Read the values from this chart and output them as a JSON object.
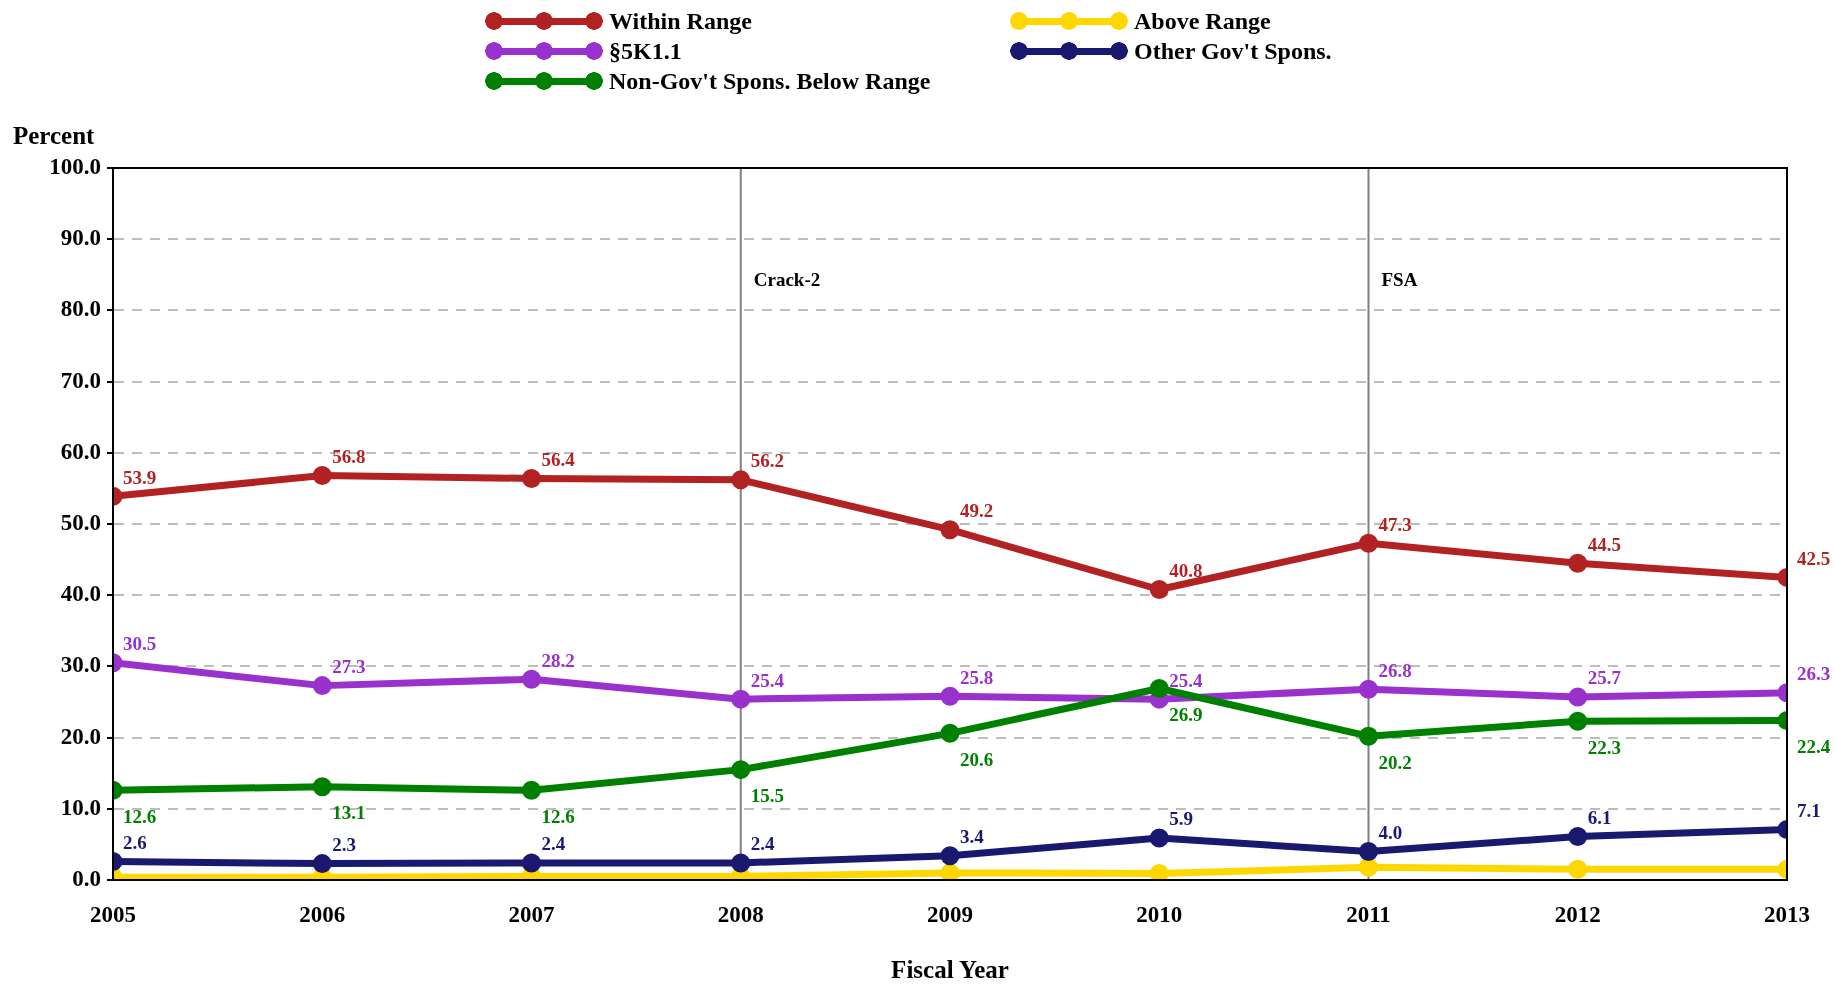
{
  "chart_data": {
    "type": "line",
    "xlabel": "Fiscal Year",
    "ylabel": "Percent",
    "x": [
      2005,
      2006,
      2007,
      2008,
      2009,
      2010,
      2011,
      2012,
      2013
    ],
    "xlim": [
      2005,
      2013
    ],
    "xticks": [
      2005,
      2006,
      2007,
      2008,
      2009,
      2010,
      2011,
      2012,
      2013
    ],
    "ylim": [
      0,
      100
    ],
    "yticks": [
      {
        "value": 0,
        "label": "0.0"
      },
      {
        "value": 10,
        "label": "10.0"
      },
      {
        "value": 20,
        "label": "20.0"
      },
      {
        "value": 30,
        "label": "30.0"
      },
      {
        "value": 40,
        "label": "40.0"
      },
      {
        "value": 50,
        "label": "50.0"
      },
      {
        "value": 60,
        "label": "60.0"
      },
      {
        "value": 70,
        "label": "70.0"
      },
      {
        "value": 80,
        "label": "80.0"
      },
      {
        "value": 90,
        "label": "90.0"
      },
      {
        "value": 100,
        "label": "100.0"
      }
    ],
    "grid": "y",
    "legend": "top",
    "marker": "circle",
    "line_style": "solid",
    "ref_lines": [
      {
        "axis": "x",
        "value": 2008,
        "label": "Crack-2",
        "color": "#808080"
      },
      {
        "axis": "x",
        "value": 2011,
        "label": "FSA",
        "color": "#808080"
      }
    ],
    "series": [
      {
        "name": "Within Range",
        "color": "#b22222",
        "values": [
          53.9,
          56.8,
          56.4,
          56.2,
          49.2,
          40.8,
          47.3,
          44.5,
          42.5
        ],
        "value_labels": [
          "53.9",
          "56.8",
          "56.4",
          "56.2",
          "49.2",
          "40.8",
          "47.3",
          "44.5",
          "42.5"
        ]
      },
      {
        "name": "§5K1.1",
        "color": "#9932cc",
        "values": [
          30.5,
          27.3,
          28.2,
          25.4,
          25.8,
          25.4,
          26.8,
          25.7,
          26.3
        ],
        "value_labels": [
          "30.5",
          "27.3",
          "28.2",
          "25.4",
          "25.8",
          "25.4",
          "26.8",
          "25.7",
          "26.3"
        ]
      },
      {
        "name": "Non-Gov't Spons. Below Range",
        "color": "#008000",
        "values": [
          12.6,
          13.1,
          12.6,
          15.5,
          20.6,
          26.9,
          20.2,
          22.3,
          22.4
        ],
        "value_labels": [
          "12.6",
          "13.1",
          "12.6",
          "15.5",
          "20.6",
          "26.9",
          "20.2",
          "22.3",
          "22.4"
        ]
      },
      {
        "name": "Above Range",
        "color": "#ffd700",
        "values": [
          0.4,
          0.4,
          0.5,
          0.5,
          1.0,
          0.9,
          1.8,
          1.5,
          1.5
        ]
      },
      {
        "name": "Other Gov't Spons.",
        "color": "#191970",
        "values": [
          2.6,
          2.3,
          2.4,
          2.4,
          3.4,
          5.9,
          4.0,
          6.1,
          7.1
        ],
        "value_labels": [
          "2.6",
          "2.3",
          "2.4",
          "2.4",
          "3.4",
          "5.9",
          "4.0",
          "6.1",
          "7.1"
        ]
      }
    ]
  }
}
